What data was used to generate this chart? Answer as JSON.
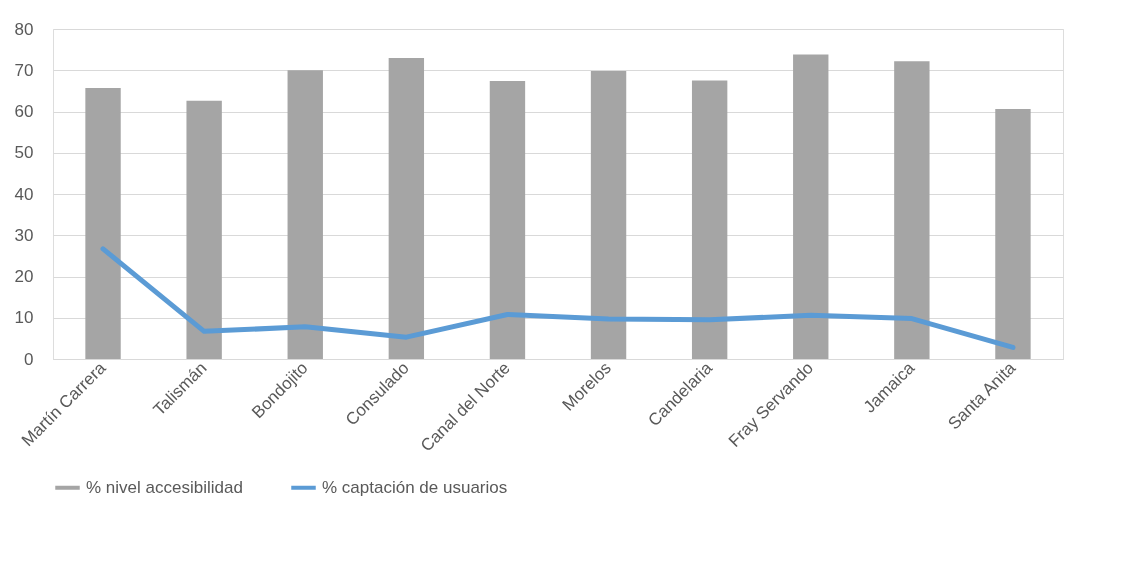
{
  "chart_data": {
    "type": "bar",
    "categories": [
      "Martín Carrera",
      "Talismán",
      "Bondojito",
      "Consulado",
      "Canal del Norte",
      "Morelos",
      "Candelaria",
      "Fray Servando",
      "Jamaica",
      "Santa Anita"
    ],
    "series": [
      {
        "name": "% nivel accesibilidad",
        "color": "#a5a5a5",
        "values": [
          65.7,
          62.6,
          70,
          73,
          67.4,
          69.8,
          67.5,
          73.8,
          72.2,
          60.6
        ]
      },
      {
        "name": "% captación de usuarios",
        "color": "#5b9bd5",
        "type": "line",
        "values": [
          26.7,
          6.7,
          7.8,
          5.3,
          10.8,
          9.7,
          9.5,
          10.6,
          9.8,
          2.8
        ]
      }
    ],
    "ylim": [
      0,
      80
    ],
    "yticks": [
      0,
      10,
      20,
      30,
      40,
      50,
      60,
      70,
      80
    ],
    "grid": "y",
    "legend": "bottom",
    "line_style": "solid",
    "marker": "none"
  }
}
